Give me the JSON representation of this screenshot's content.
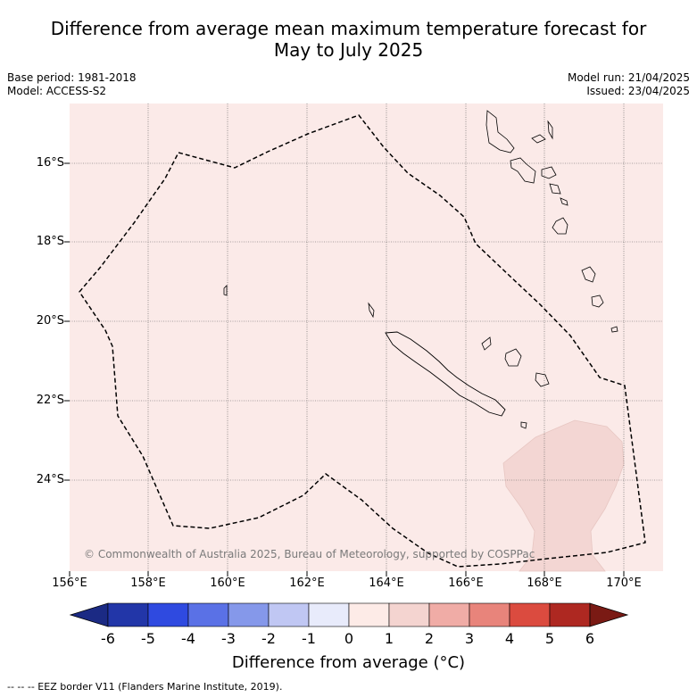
{
  "title_line1": "Difference from average mean maximum temperature forecast for",
  "title_line2": "May to July 2025",
  "base_period": "Base period: 1981-2018",
  "model": "Model: ACCESS-S2",
  "model_run": "Model run: 21/04/2025",
  "issued": "Issued: 23/04/2025",
  "map": {
    "lon_labels": [
      "156°E",
      "158°E",
      "160°E",
      "162°E",
      "164°E",
      "166°E",
      "168°E",
      "170°E"
    ],
    "lat_labels": [
      "16°S",
      "18°S",
      "20°S",
      "22°S",
      "24°S"
    ],
    "background_anomaly_color": "#fbeae8",
    "warm_patch_color": "#f3d6d3",
    "copyright": "© Commonwealth of Australia 2025, Bureau of Meteorology, supported by COSPPac"
  },
  "colorbar": {
    "ticks": [
      "-6",
      "-5",
      "-4",
      "-3",
      "-2",
      "-1",
      "0",
      "1",
      "2",
      "3",
      "4",
      "5",
      "6"
    ],
    "colors": [
      "#1b2a84",
      "#2236a8",
      "#2f4ae0",
      "#5a71e6",
      "#8598ea",
      "#c0c7f3",
      "#e8ebfb",
      "#fdebe7",
      "#f4d4d0",
      "#f0aca6",
      "#e8847b",
      "#db4b3f",
      "#ae2821",
      "#7a1a14"
    ],
    "label": "Difference from average (°C)"
  },
  "footnote": "-- -- -- EEZ border V11 (Flanders Marine Institute, 2019)."
}
